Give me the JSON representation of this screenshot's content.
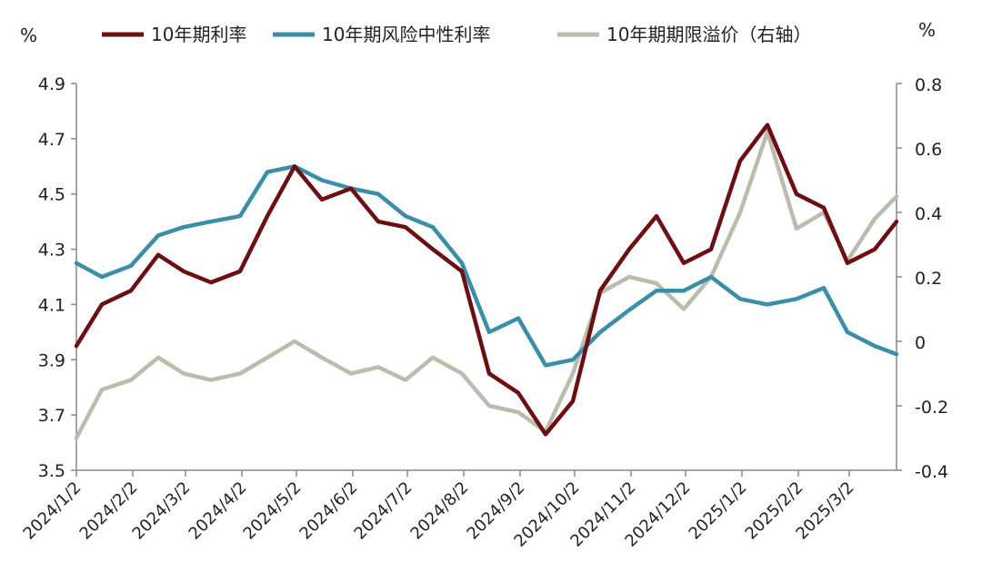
{
  "chart_data": {
    "type": "line",
    "left_axis": {
      "unit": "%",
      "ylim": [
        3.5,
        4.9
      ],
      "ticks": [
        "3.5",
        "3.7",
        "3.9",
        "4.1",
        "4.3",
        "4.5",
        "4.7",
        "4.9"
      ]
    },
    "right_axis": {
      "unit": "%",
      "ylim": [
        -0.4,
        0.8
      ],
      "ticks": [
        "-0.4",
        "-0.2",
        "0",
        "0.2",
        "0.4",
        "0.6",
        "0.8"
      ]
    },
    "x_ticks": [
      "2024/1/2",
      "2024/2/2",
      "2024/3/2",
      "2024/4/2",
      "2024/5/2",
      "2024/6/2",
      "2024/7/2",
      "2024/8/2",
      "2024/9/2",
      "2024/10/2",
      "2024/11/2",
      "2024/12/2",
      "2025/1/2",
      "2025/2/2",
      "2025/3/2"
    ],
    "x": [
      "2024-01-02",
      "2024-01-16",
      "2024-02-01",
      "2024-02-16",
      "2024-03-01",
      "2024-03-16",
      "2024-04-01",
      "2024-04-16",
      "2024-05-01",
      "2024-05-16",
      "2024-06-01",
      "2024-06-16",
      "2024-07-01",
      "2024-07-16",
      "2024-08-01",
      "2024-08-16",
      "2024-09-01",
      "2024-09-16",
      "2024-10-01",
      "2024-10-16",
      "2024-11-01",
      "2024-11-16",
      "2024-12-01",
      "2024-12-16",
      "2025-01-01",
      "2025-01-16",
      "2025-02-01",
      "2025-02-16",
      "2025-03-01",
      "2025-03-16",
      "2025-03-28"
    ],
    "legend_position": "top",
    "grid": false,
    "series": [
      {
        "name": "10年期利率",
        "axis": "left",
        "color": "#6b0f12",
        "values": [
          3.95,
          4.1,
          4.15,
          4.28,
          4.22,
          4.18,
          4.22,
          4.42,
          4.6,
          4.48,
          4.52,
          4.4,
          4.38,
          4.3,
          4.22,
          3.85,
          3.78,
          3.63,
          3.75,
          4.15,
          4.3,
          4.42,
          4.25,
          4.3,
          4.62,
          4.75,
          4.5,
          4.45,
          4.25,
          4.3,
          4.4
        ]
      },
      {
        "name": "10年期风险中性利率",
        "axis": "left",
        "color": "#3a8ea5",
        "values": [
          4.25,
          4.2,
          4.24,
          4.35,
          4.38,
          4.4,
          4.42,
          4.58,
          4.6,
          4.55,
          4.52,
          4.5,
          4.42,
          4.38,
          4.25,
          4.0,
          4.05,
          3.88,
          3.9,
          4.0,
          4.08,
          4.15,
          4.15,
          4.2,
          4.12,
          4.1,
          4.12,
          4.16,
          4.0,
          3.95,
          3.92
        ]
      },
      {
        "name": "10年期期限溢价（右轴）",
        "axis": "right",
        "color": "#bdbcac",
        "values": [
          -0.3,
          -0.15,
          -0.12,
          -0.05,
          -0.1,
          -0.12,
          -0.1,
          -0.05,
          0.0,
          -0.05,
          -0.1,
          -0.08,
          -0.12,
          -0.05,
          -0.1,
          -0.2,
          -0.22,
          -0.28,
          -0.1,
          0.15,
          0.2,
          0.18,
          0.1,
          0.2,
          0.4,
          0.65,
          0.35,
          0.4,
          0.25,
          0.38,
          0.45
        ]
      }
    ]
  }
}
